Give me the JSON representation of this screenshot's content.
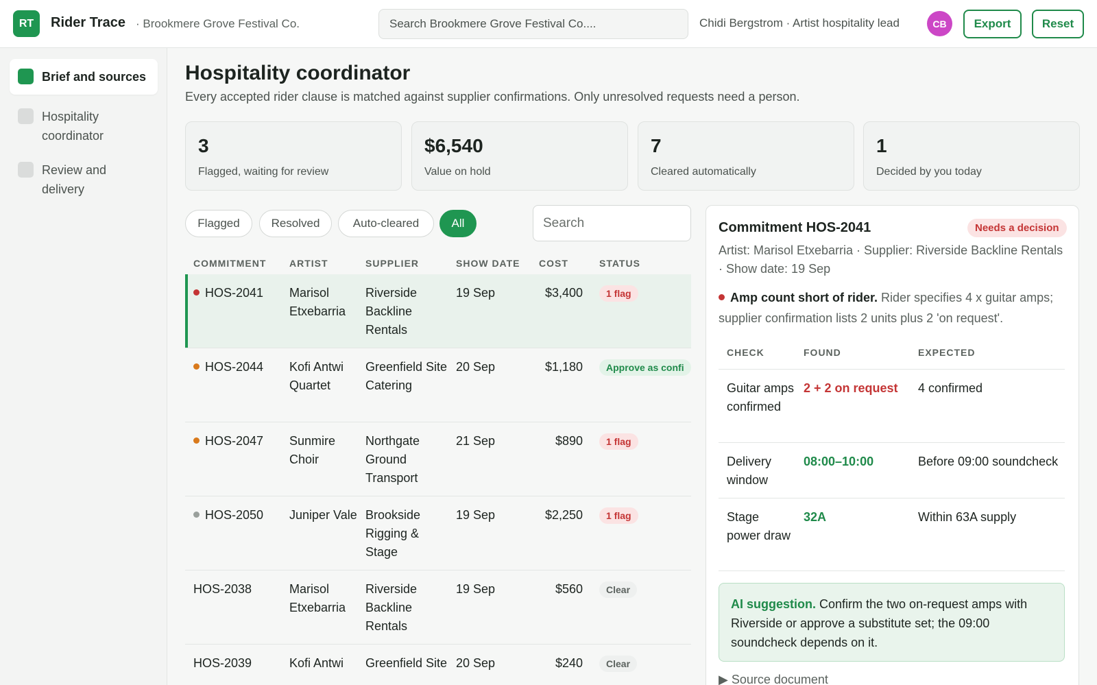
{
  "app": {
    "logo": "RT",
    "name": "Rider Trace",
    "org": "· Brookmere Grove Festival Co.",
    "search_placeholder": "Search Brookmere Grove Festival Co....",
    "user": "Chidi Bergstrom · Artist hospitality lead",
    "avatar": "CB",
    "export_label": "Export",
    "reset_label": "Reset",
    "accent": "#1f9651"
  },
  "sidebar": {
    "items": [
      {
        "label": "Brief and sources",
        "active": true
      },
      {
        "label": "Hospitality coordinator",
        "active": false
      },
      {
        "label": "Review and delivery",
        "active": false
      }
    ]
  },
  "main": {
    "title": "Hospitality coordinator",
    "subtitle": "Every accepted rider clause is matched against supplier confirmations. Only unresolved requests need a person.",
    "stats": [
      {
        "value": "3",
        "label": "Flagged, waiting for review"
      },
      {
        "value": "$6,540",
        "label": "Value on hold"
      },
      {
        "value": "7",
        "label": "Cleared automatically"
      },
      {
        "value": "1",
        "label": "Decided by you today"
      }
    ],
    "filters": [
      "Flagged",
      "Resolved",
      "Auto-cleared",
      "All"
    ],
    "active_filter": "All",
    "search_placeholder": "Search",
    "columns": [
      "COMMITMENT",
      "ARTIST",
      "SUPPLIER",
      "SHOW DATE",
      "COST",
      "STATUS"
    ],
    "rows": [
      {
        "id": "HOS-2041",
        "dot": "#c43535",
        "artist": "Marisol Etxebarria",
        "supplier": "Riverside Backline Rentals",
        "date": "19 Sep",
        "cost": "$3,400",
        "status": "1 flag",
        "status_type": "flag",
        "selected": true
      },
      {
        "id": "HOS-2044",
        "dot": "#d97a1c",
        "artist": "Kofi Antwi Quartet",
        "supplier": "Greenfield Site Catering",
        "date": "20 Sep",
        "cost": "$1,180",
        "status": "Approve as confi",
        "status_type": "approve"
      },
      {
        "id": "HOS-2047",
        "dot": "#d97a1c",
        "artist": "Sunmire Choir",
        "supplier": "Northgate Ground Transport",
        "date": "21 Sep",
        "cost": "$890",
        "status": "1 flag",
        "status_type": "flag"
      },
      {
        "id": "HOS-2050",
        "dot": "#9aa09c",
        "artist": "Juniper Vale",
        "supplier": "Brookside Rigging & Stage",
        "date": "19 Sep",
        "cost": "$2,250",
        "status": "1 flag",
        "status_type": "flag"
      },
      {
        "id": "HOS-2038",
        "dot": "",
        "artist": "Marisol Etxebarria",
        "supplier": "Riverside Backline Rentals",
        "date": "19 Sep",
        "cost": "$560",
        "status": "Clear",
        "status_type": "clear"
      },
      {
        "id": "HOS-2039",
        "dot": "",
        "artist": "Kofi Antwi",
        "supplier": "Greenfield Site",
        "date": "20 Sep",
        "cost": "$240",
        "status": "Clear",
        "status_type": "clear"
      }
    ]
  },
  "detail": {
    "title": "Commitment HOS-2041",
    "badge": "Needs a decision",
    "meta": "Artist: Marisol Etxebarria · Supplier: Riverside Backline Rentals · Show date: 19 Sep",
    "issue_title": "Amp count short of rider.",
    "issue_text": " Rider specifies 4 x guitar amps; supplier confirmation lists 2 units plus 2 'on request'.",
    "check_columns": [
      "CHECK",
      "FOUND",
      "EXPECTED"
    ],
    "checks": [
      {
        "check": "Guitar amps confirmed",
        "found": "2 + 2 on request",
        "found_color": "#c43535",
        "expected": "4 confirmed"
      },
      {
        "check": "Delivery window",
        "found": "08:00–10:00",
        "found_color": "#1f8a4a",
        "expected": "Before 09:00 soundcheck"
      },
      {
        "check": "Stage power draw",
        "found": "32A",
        "found_color": "#1f8a4a",
        "expected": "Within 63A supply"
      }
    ],
    "ai_label": "AI suggestion.",
    "ai_text": " Confirm the two on-request amps with Riverside or approve a substitute set; the 09:00 soundcheck depends on it.",
    "source_label": "▶ Source document"
  }
}
